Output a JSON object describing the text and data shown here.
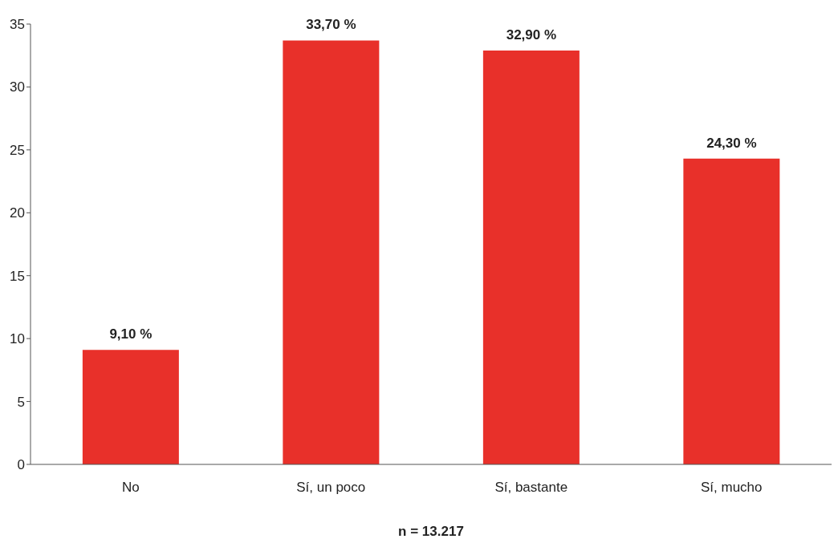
{
  "chart_data": {
    "type": "bar",
    "categories": [
      "No",
      "Sí, un poco",
      "Sí, bastante",
      "Sí, mucho"
    ],
    "values": [
      9.1,
      33.7,
      32.9,
      24.3
    ],
    "value_labels": [
      "9,10 %",
      "33,70 %",
      "32,90 %",
      "24,30 %"
    ],
    "color": "#e8302a",
    "ylim": [
      0,
      35
    ],
    "yticks": [
      0,
      5,
      10,
      15,
      20,
      25,
      30,
      35
    ],
    "grid": false,
    "legend": false,
    "annotations": [
      "n = 13.217"
    ]
  }
}
